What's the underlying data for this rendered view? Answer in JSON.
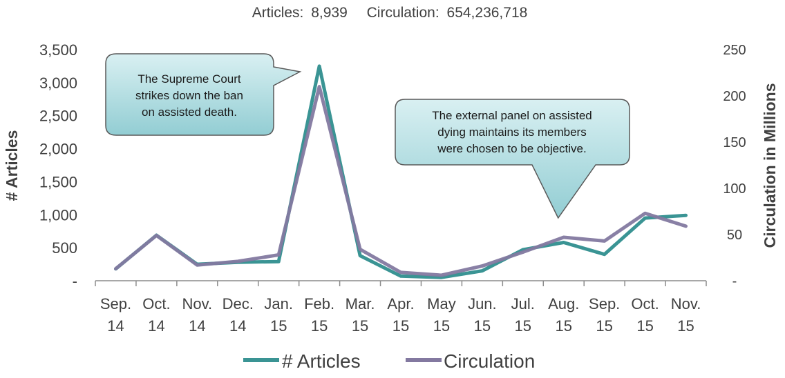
{
  "summary": {
    "articles_label": "Articles:",
    "articles_value": "8,939",
    "circulation_label": "Circulation:",
    "circulation_value": "654,236,718"
  },
  "colors": {
    "articles": "#3a9494",
    "circulation": "#8379a0",
    "callout_fill_top": "#d9f0f2",
    "callout_fill_bottom": "#92cdd3",
    "callout_stroke": "#595959"
  },
  "chart_data": {
    "type": "line",
    "categories": [
      [
        "Sep.",
        "14"
      ],
      [
        "Oct.",
        "14"
      ],
      [
        "Nov.",
        "14"
      ],
      [
        "Dec.",
        "14"
      ],
      [
        "Jan.",
        "15"
      ],
      [
        "Feb.",
        "15"
      ],
      [
        "Mar.",
        "15"
      ],
      [
        "Apr.",
        "15"
      ],
      [
        "May",
        "15"
      ],
      [
        "Jun.",
        "15"
      ],
      [
        "Jul.",
        "15"
      ],
      [
        "Aug.",
        "15"
      ],
      [
        "Sep.",
        "15"
      ],
      [
        "Oct.",
        "15"
      ],
      [
        "Nov.",
        "15"
      ]
    ],
    "series": [
      {
        "name": "# Articles",
        "axis": "left",
        "values": [
          180,
          690,
          250,
          280,
          290,
          3250,
          380,
          70,
          50,
          150,
          470,
          580,
          400,
          950,
          990
        ]
      },
      {
        "name": "Circulation",
        "axis": "right",
        "values": [
          13,
          49,
          17,
          21,
          28,
          210,
          34,
          9,
          6,
          16,
          31,
          47,
          43,
          73,
          59
        ]
      }
    ],
    "left_axis": {
      "title": "# Articles",
      "ylim": [
        0,
        3500
      ],
      "ticks": [
        0,
        500,
        1000,
        1500,
        2000,
        2500,
        3000,
        3500
      ],
      "tick_labels": [
        "-",
        "500",
        "1,000",
        "1,500",
        "2,000",
        "2,500",
        "3,000",
        "3,500"
      ]
    },
    "right_axis": {
      "title": "Circulation in Millions",
      "ylim": [
        0,
        250
      ],
      "ticks": [
        0,
        50,
        100,
        150,
        200,
        250
      ],
      "tick_labels": [
        "-",
        "50",
        "100",
        "150",
        "200",
        "250"
      ]
    },
    "grid": false,
    "legend": {
      "position": "bottom",
      "entries": [
        "# Articles",
        "Circulation"
      ]
    },
    "annotations": [
      {
        "lines": [
          "The Supreme Court",
          "strikes down the ban",
          "on assisted death."
        ],
        "category_index": 5,
        "pointer": "right"
      },
      {
        "lines": [
          "The external panel on assisted",
          "dying maintains its members",
          "were chosen to be objective."
        ],
        "category_index": 11,
        "pointer": "down"
      }
    ]
  }
}
